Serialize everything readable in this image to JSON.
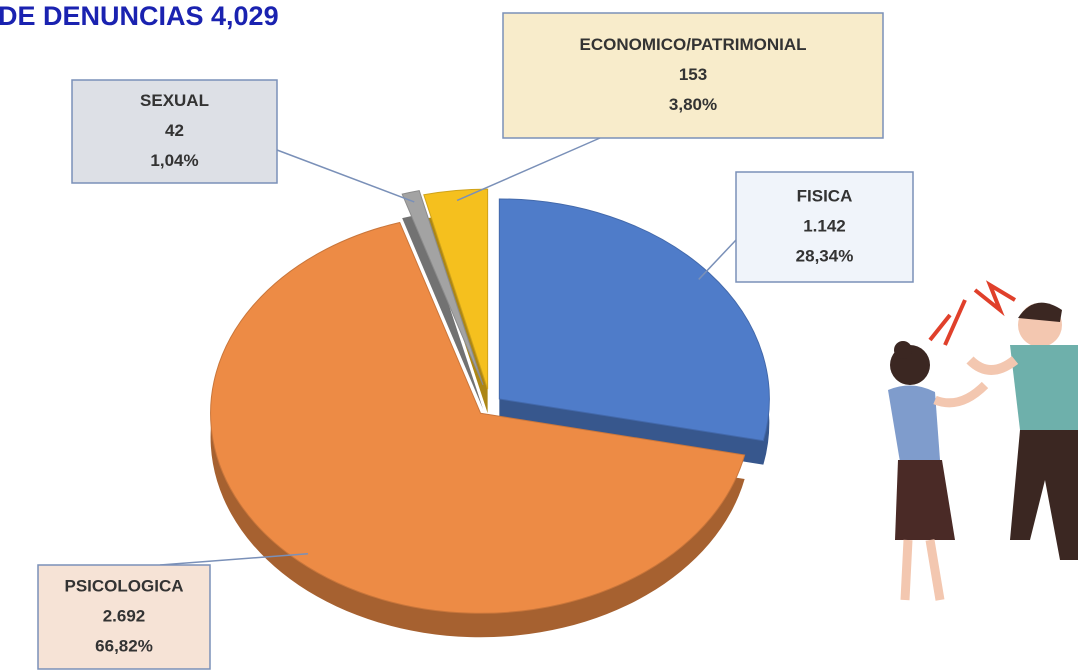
{
  "chart_data": {
    "type": "pie",
    "title": "DE DENUNCIAS 4,029",
    "categories": [
      "FISICA",
      "PSICOLOGICA",
      "SEXUAL",
      "ECONOMICO/PATRIMONIAL"
    ],
    "values": [
      1142,
      2692,
      42,
      153
    ],
    "value_labels": [
      "1.142",
      "2.692",
      "42",
      "153"
    ],
    "percents": [
      28.34,
      66.82,
      1.04,
      3.8
    ],
    "percent_labels": [
      "28,34%",
      "66,82%",
      "1,04%",
      "3,80%"
    ],
    "colors": [
      "#4f7cc9",
      "#ed8b45",
      "#a3a3a3",
      "#f5c01e"
    ]
  }
}
